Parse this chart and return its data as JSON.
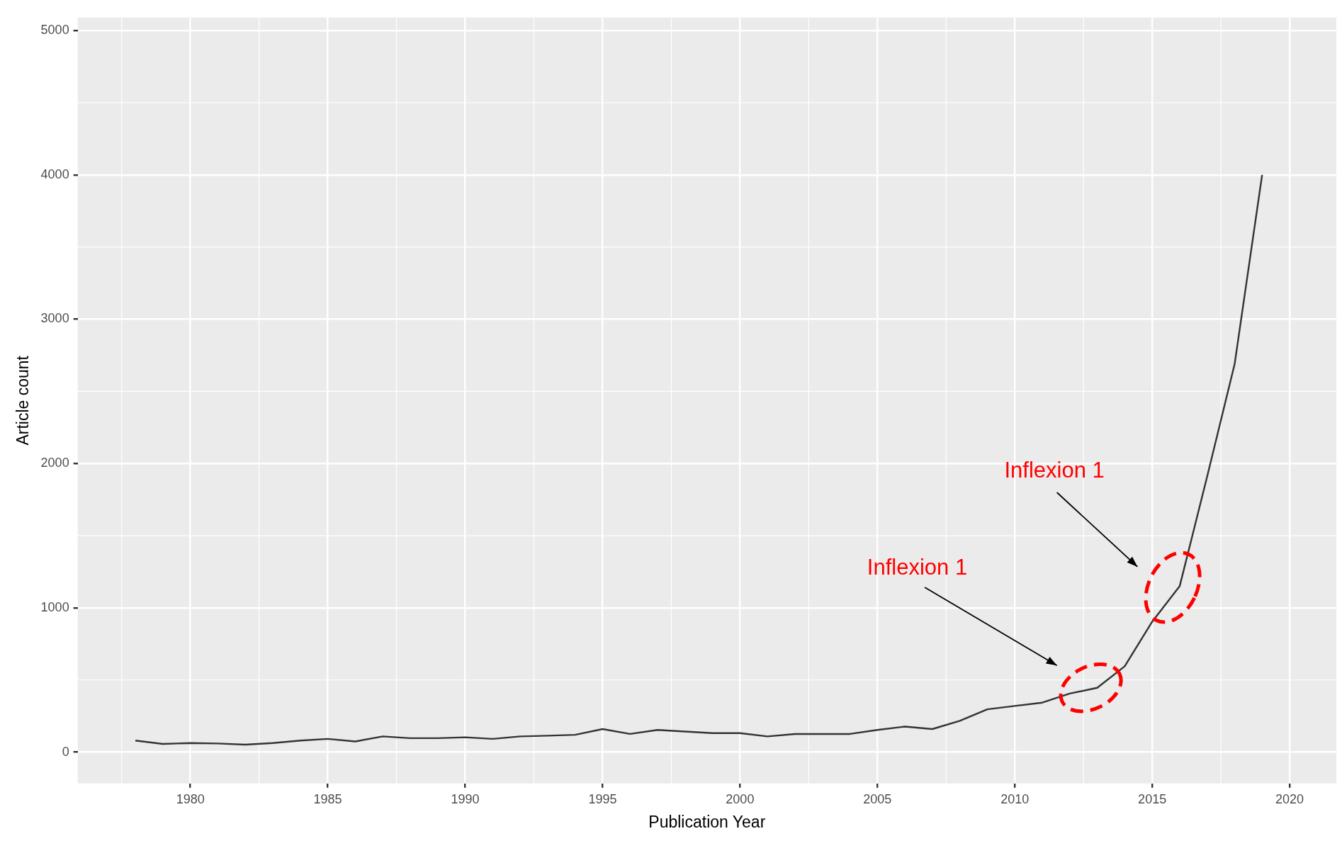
{
  "chart_data": {
    "type": "line",
    "xlabel": "Publication Year",
    "ylabel": "Article count",
    "x": [
      1978,
      1979,
      1980,
      1981,
      1982,
      1983,
      1984,
      1985,
      1986,
      1987,
      1988,
      1989,
      1990,
      1991,
      1992,
      1993,
      1994,
      1995,
      1996,
      1997,
      1998,
      1999,
      2000,
      2001,
      2002,
      2003,
      2004,
      2005,
      2006,
      2007,
      2008,
      2009,
      2010,
      2011,
      2012,
      2013,
      2014,
      2015,
      2016,
      2017,
      2018,
      2019
    ],
    "series": [
      {
        "color": "#333333",
        "values": [
          80,
          57,
          63,
          60,
          52,
          63,
          80,
          92,
          74,
          109,
          97,
          97,
          103,
          92,
          109,
          114,
          120,
          160,
          126,
          154,
          143,
          132,
          132,
          109,
          126,
          126,
          126,
          154,
          177,
          160,
          217,
          297,
          320,
          343,
          406,
          446,
          595,
          904,
          1150,
          1910,
          2690,
          4000
        ]
      }
    ],
    "xlim": [
      1975.9,
      2021.7
    ],
    "ylim": [
      -217,
      5090
    ],
    "xticks": [
      1980,
      1985,
      1990,
      1995,
      2000,
      2005,
      2010,
      2015,
      2020
    ],
    "yticks": [
      0,
      1000,
      2000,
      3000,
      4000,
      5000
    ],
    "grid": true,
    "legend": false,
    "marker": "none",
    "line_style": "solid",
    "annotations": [
      "Inflexion 1",
      "Inflexion 1"
    ]
  }
}
